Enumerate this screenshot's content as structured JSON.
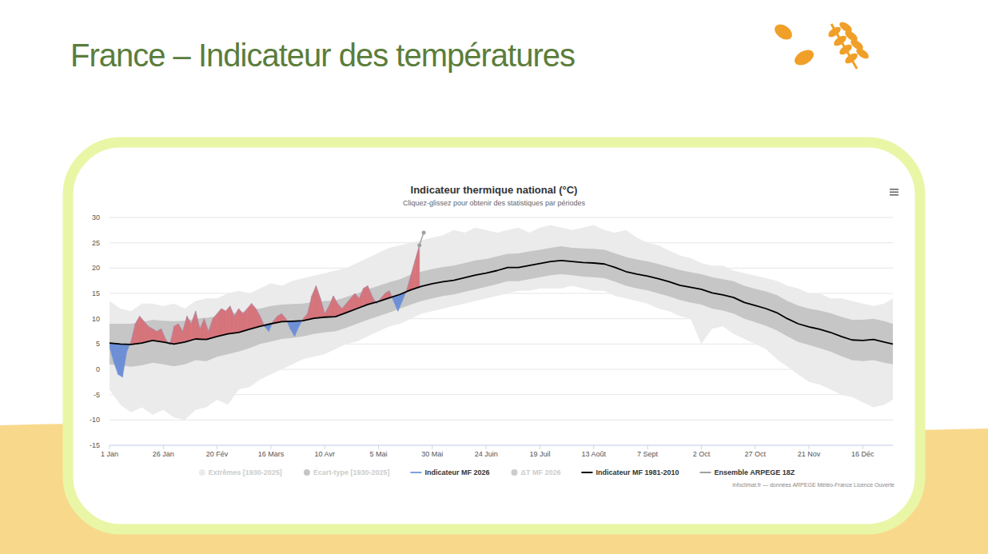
{
  "page": {
    "title": "France – Indicateur des températures"
  },
  "chart_data": {
    "type": "line",
    "title": "Indicateur thermique national (°C)",
    "subtitle": "Cliquez-glissez pour obtenir des statistiques par périodes",
    "credits": "infoclimat.fr — données ARPEGE Météo-France Licence Ouverte",
    "grid": true,
    "legend": "bottom",
    "xlim": [
      1,
      365
    ],
    "xticks": [
      {
        "value": 1,
        "label": "1 Jan"
      },
      {
        "value": 26,
        "label": "26 Jan"
      },
      {
        "value": 51,
        "label": "20 Fév"
      },
      {
        "value": 76,
        "label": "16 Mars"
      },
      {
        "value": 101,
        "label": "10 Avr"
      },
      {
        "value": 126,
        "label": "5 Mai"
      },
      {
        "value": 151,
        "label": "30 Mai"
      },
      {
        "value": 176,
        "label": "24 Juin"
      },
      {
        "value": 201,
        "label": "19 Juil"
      },
      {
        "value": 226,
        "label": "13 Août"
      },
      {
        "value": 251,
        "label": "7 Sept"
      },
      {
        "value": 276,
        "label": "2 Oct"
      },
      {
        "value": 301,
        "label": "27 Oct"
      },
      {
        "value": 326,
        "label": "21 Nov"
      },
      {
        "value": 351,
        "label": "16 Déc"
      }
    ],
    "ylim": [
      -15,
      30
    ],
    "yticks": [
      -15,
      -10,
      -5,
      0,
      5,
      10,
      15,
      20,
      25,
      30
    ],
    "x": [
      1,
      6,
      11,
      16,
      21,
      26,
      31,
      36,
      41,
      46,
      51,
      56,
      61,
      66,
      71,
      76,
      81,
      86,
      91,
      96,
      101,
      106,
      111,
      116,
      121,
      126,
      131,
      136,
      141,
      146,
      151,
      156,
      161,
      166,
      171,
      176,
      181,
      186,
      191,
      196,
      201,
      206,
      211,
      216,
      221,
      226,
      231,
      236,
      241,
      246,
      251,
      256,
      261,
      266,
      271,
      276,
      281,
      286,
      291,
      296,
      301,
      306,
      311,
      316,
      321,
      326,
      331,
      336,
      341,
      346,
      351,
      356,
      361,
      365
    ],
    "series": [
      {
        "name": "Extrêmes [1930-2025]",
        "type": "band",
        "color": "#ebebeb",
        "low": [
          -4.0,
          -7.0,
          -8.5,
          -7.5,
          -9.0,
          -8.0,
          -9.5,
          -10.0,
          -8.0,
          -7.5,
          -6.0,
          -7.0,
          -4.0,
          -3.5,
          -2.0,
          -1.0,
          0.0,
          1.0,
          2.0,
          2.5,
          3.0,
          4.0,
          5.0,
          5.5,
          6.5,
          7.5,
          8.5,
          9.0,
          10.0,
          11.0,
          11.5,
          12.0,
          12.5,
          13.0,
          13.5,
          14.0,
          14.5,
          15.0,
          15.5,
          15.5,
          16.0,
          16.0,
          16.0,
          16.5,
          16.0,
          15.5,
          15.5,
          14.5,
          14.0,
          13.5,
          13.0,
          12.0,
          11.5,
          10.5,
          10.0,
          5.0,
          8.0,
          8.5,
          7.0,
          6.0,
          5.0,
          4.0,
          2.0,
          0.5,
          -1.0,
          -2.5,
          -3.0,
          -4.0,
          -5.0,
          -5.5,
          -6.5,
          -7.5,
          -7.0,
          -6.0
        ],
        "high": [
          13.5,
          12.0,
          11.5,
          13.0,
          13.0,
          12.5,
          13.0,
          12.0,
          13.5,
          14.0,
          14.0,
          15.0,
          15.5,
          15.0,
          16.0,
          17.0,
          16.5,
          17.5,
          18.0,
          18.5,
          19.0,
          19.5,
          20.0,
          21.0,
          22.0,
          23.0,
          24.0,
          24.5,
          25.0,
          25.5,
          26.0,
          26.5,
          27.5,
          27.0,
          28.0,
          27.5,
          27.0,
          27.5,
          28.0,
          27.0,
          28.0,
          28.5,
          28.0,
          27.5,
          28.0,
          28.5,
          27.5,
          27.0,
          27.5,
          26.0,
          25.0,
          24.5,
          23.5,
          22.5,
          22.0,
          21.0,
          20.5,
          20.5,
          19.5,
          19.0,
          18.5,
          18.0,
          17.5,
          16.5,
          16.0,
          15.0,
          15.0,
          14.0,
          14.0,
          13.5,
          13.0,
          12.5,
          13.0,
          14.0
        ]
      },
      {
        "name": "Écart-type [1930-2025]",
        "type": "band",
        "color": "#c6c6c6",
        "low": [
          1.0,
          0.8,
          0.5,
          0.8,
          1.3,
          1.0,
          0.6,
          1.0,
          1.8,
          1.6,
          2.5,
          3.0,
          3.5,
          4.2,
          5.0,
          5.5,
          6.0,
          6.2,
          6.5,
          7.0,
          7.3,
          7.5,
          8.2,
          9.0,
          9.8,
          10.5,
          11.2,
          12.0,
          12.8,
          13.5,
          14.0,
          14.5,
          14.8,
          15.3,
          15.8,
          16.3,
          16.8,
          17.4,
          17.4,
          17.8,
          18.2,
          18.6,
          18.8,
          18.6,
          18.3,
          18.2,
          18.0,
          17.3,
          16.5,
          16.0,
          15.6,
          15.0,
          14.4,
          13.7,
          13.2,
          12.8,
          12.0,
          11.6,
          11.0,
          10.0,
          9.3,
          8.6,
          7.7,
          6.5,
          5.4,
          4.8,
          4.2,
          3.5,
          2.6,
          1.8,
          1.6,
          1.8,
          1.3,
          1.0
        ],
        "high": [
          9.0,
          9.0,
          9.0,
          9.3,
          9.8,
          9.6,
          9.5,
          9.6,
          10.0,
          10.2,
          10.5,
          11.0,
          11.2,
          11.7,
          12.0,
          12.5,
          12.8,
          12.9,
          13.0,
          13.3,
          13.5,
          13.6,
          14.3,
          15.0,
          15.8,
          16.5,
          17.2,
          17.8,
          18.7,
          19.3,
          19.8,
          20.2,
          20.5,
          21.0,
          21.5,
          21.8,
          22.3,
          22.8,
          22.9,
          23.3,
          23.6,
          24.0,
          24.3,
          24.0,
          23.9,
          23.8,
          23.6,
          22.9,
          22.2,
          21.7,
          21.3,
          20.8,
          20.2,
          19.6,
          19.2,
          18.8,
          18.2,
          17.8,
          17.4,
          16.5,
          15.9,
          15.4,
          14.7,
          13.5,
          12.6,
          12.0,
          11.6,
          11.1,
          10.4,
          9.8,
          9.8,
          10.0,
          9.5,
          9.0
        ]
      },
      {
        "name": "Indicateur MF 2026",
        "type": "anomaly",
        "color": "#7aa0dc",
        "x": [
          1,
          3,
          5,
          7,
          9,
          11,
          13,
          15,
          17,
          19,
          21,
          23,
          25,
          27,
          29,
          31,
          33,
          35,
          37,
          39,
          41,
          43,
          45,
          47,
          49,
          51,
          53,
          55,
          57,
          59,
          61,
          63,
          65,
          67,
          69,
          71,
          73,
          75,
          77,
          79,
          81,
          83,
          85,
          87,
          89,
          91,
          93,
          95,
          97,
          99,
          101,
          103,
          105,
          107,
          109,
          111,
          113,
          115,
          117,
          119,
          121,
          123,
          125,
          127,
          129,
          131,
          133,
          135,
          137,
          139,
          141,
          143,
          145
        ],
        "values": [
          4.5,
          1.5,
          -1.0,
          -1.5,
          3.5,
          5.5,
          9.0,
          10.5,
          9.5,
          8.5,
          8.0,
          7.5,
          8.0,
          6.0,
          4.8,
          8.5,
          9.0,
          7.5,
          10.5,
          9.0,
          11.5,
          8.0,
          10.0,
          7.5,
          10.0,
          11.0,
          12.0,
          11.5,
          12.5,
          10.5,
          12.0,
          11.0,
          12.0,
          13.0,
          12.0,
          10.5,
          8.5,
          7.5,
          9.5,
          10.5,
          11.0,
          10.0,
          8.0,
          6.5,
          8.5,
          10.0,
          11.0,
          14.5,
          16.5,
          14.0,
          11.0,
          12.5,
          14.5,
          13.0,
          12.0,
          13.0,
          14.0,
          15.0,
          14.0,
          16.0,
          16.5,
          14.5,
          13.0,
          14.0,
          15.0,
          15.5,
          13.5,
          11.5,
          13.5,
          15.5,
          18.5,
          21.5,
          24.5
        ]
      },
      {
        "name": "ΔT MF 2026",
        "type": "area",
        "color": "#cccccc"
      },
      {
        "name": "Indicateur MF 1981-2010",
        "type": "line",
        "color": "#000000",
        "values": [
          5.2,
          5.0,
          4.9,
          5.2,
          5.7,
          5.4,
          5.0,
          5.4,
          6.0,
          5.9,
          6.5,
          7.0,
          7.3,
          7.9,
          8.5,
          9.0,
          9.4,
          9.5,
          9.6,
          10.1,
          10.3,
          10.4,
          11.2,
          12.0,
          12.8,
          13.4,
          14.1,
          14.8,
          15.7,
          16.4,
          16.9,
          17.3,
          17.6,
          18.1,
          18.6,
          19.0,
          19.5,
          20.1,
          20.1,
          20.5,
          20.9,
          21.3,
          21.5,
          21.3,
          21.1,
          21.0,
          20.8,
          20.1,
          19.3,
          18.8,
          18.4,
          17.9,
          17.3,
          16.6,
          16.2,
          15.8,
          15.1,
          14.7,
          14.2,
          13.2,
          12.6,
          12.0,
          11.2,
          10.0,
          9.0,
          8.4,
          7.9,
          7.3,
          6.5,
          5.8,
          5.7,
          5.9,
          5.4,
          5.0
        ]
      },
      {
        "name": "Ensemble ARPEGE 18Z",
        "type": "line",
        "color": "#a0a0a0",
        "marker": "circle",
        "x": [
          145,
          147
        ],
        "values": [
          24.5,
          27.0
        ]
      }
    ]
  }
}
